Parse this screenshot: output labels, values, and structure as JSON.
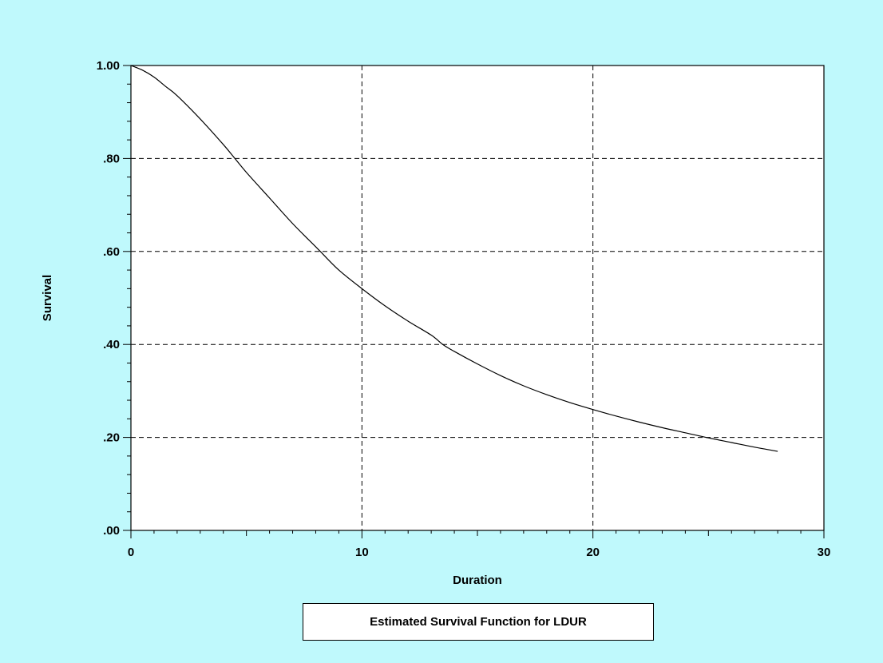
{
  "chart_data": {
    "type": "line",
    "title": "Estimated Survival Function for LDUR",
    "xlabel": "Duration",
    "ylabel": "Survival",
    "xlim": [
      0,
      30
    ],
    "ylim": [
      0,
      1
    ],
    "grid": true,
    "x_ticks": [
      0,
      10,
      20,
      30
    ],
    "x_tick_labels": [
      "0",
      "10",
      "20",
      "30"
    ],
    "y_ticks": [
      0,
      0.2,
      0.4,
      0.6,
      0.8,
      1.0
    ],
    "y_tick_labels": [
      ".00",
      ".20",
      ".40",
      ".60",
      ".80",
      "1.00"
    ],
    "series": [
      {
        "color": "#000000",
        "x": [
          0,
          0.5,
          1,
          1.5,
          2,
          3,
          4,
          4.5,
          5,
          6,
          7,
          8,
          8.2,
          9,
          10,
          11,
          12,
          13,
          13.5,
          14,
          15,
          16,
          17,
          18,
          19,
          20,
          21,
          22,
          23,
          24,
          25,
          26,
          27,
          28
        ],
        "y": [
          1.0,
          0.99,
          0.975,
          0.955,
          0.935,
          0.885,
          0.83,
          0.8,
          0.77,
          0.715,
          0.66,
          0.61,
          0.6,
          0.56,
          0.52,
          0.483,
          0.45,
          0.42,
          0.4,
          0.385,
          0.358,
          0.333,
          0.311,
          0.292,
          0.275,
          0.26,
          0.246,
          0.233,
          0.221,
          0.21,
          0.199,
          0.189,
          0.179,
          0.17
        ]
      }
    ]
  }
}
